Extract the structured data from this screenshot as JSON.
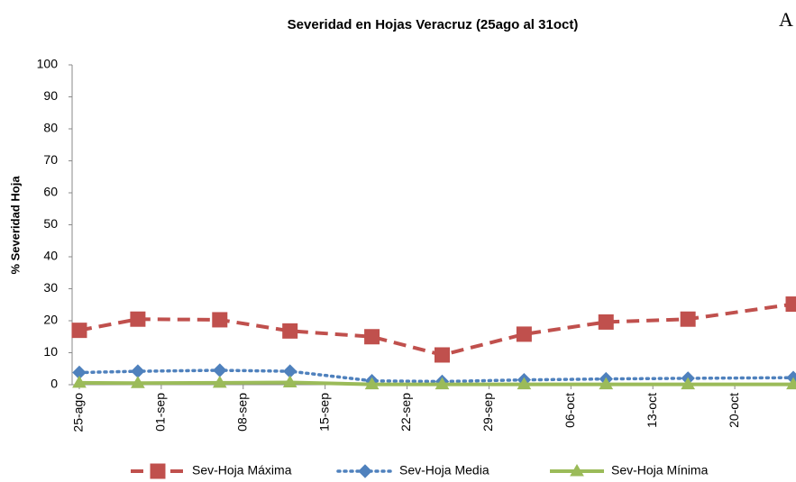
{
  "chart_data": {
    "type": "line",
    "title": "Severidad en Hojas Veracruz (25ago al 31oct)",
    "panel_label": "A",
    "y_label": "% Severidad Hoja",
    "x": [
      "08-25",
      "08-30",
      "09-06",
      "09-12",
      "09-19",
      "09-25",
      "10-02",
      "10-09",
      "10-16",
      "10-25"
    ],
    "xlim": [
      "08-24",
      "10-25"
    ],
    "xticks": [
      {
        "value": "08-25",
        "label": "25-ago"
      },
      {
        "value": "09-01",
        "label": "01-sep"
      },
      {
        "value": "09-08",
        "label": "08-sep"
      },
      {
        "value": "09-15",
        "label": "15-sep"
      },
      {
        "value": "09-22",
        "label": "22-sep"
      },
      {
        "value": "09-29",
        "label": "29-sep"
      },
      {
        "value": "10-06",
        "label": "06-oct"
      },
      {
        "value": "10-13",
        "label": "13-oct"
      },
      {
        "value": "10-20",
        "label": "20-oct"
      }
    ],
    "ylim": [
      0,
      100
    ],
    "yticks": [
      0,
      10,
      20,
      30,
      40,
      50,
      60,
      70,
      80,
      90,
      100
    ],
    "legend": "bottom",
    "series": [
      {
        "name": "Sev-Hoja Máxima",
        "color": "#c0504d",
        "line_style": "dashed",
        "marker": "square",
        "values": [
          17,
          20.5,
          20.3,
          16.8,
          15,
          9.3,
          15.8,
          19.6,
          20.5,
          25.2
        ]
      },
      {
        "name": "Sev-Hoja Media",
        "color": "#4f81bd",
        "line_style": "dotted",
        "marker": "diamond",
        "values": [
          3.8,
          4.2,
          4.5,
          4.2,
          1.2,
          1,
          1.5,
          1.8,
          2,
          2.2
        ]
      },
      {
        "name": "Sev-Hoja Mínima",
        "color": "#9bbb59",
        "line_style": "solid",
        "marker": "triangle",
        "values": [
          0.6,
          0.5,
          0.6,
          0.7,
          0.1,
          0.1,
          0.1,
          0.1,
          0.1,
          0.1
        ]
      }
    ]
  }
}
